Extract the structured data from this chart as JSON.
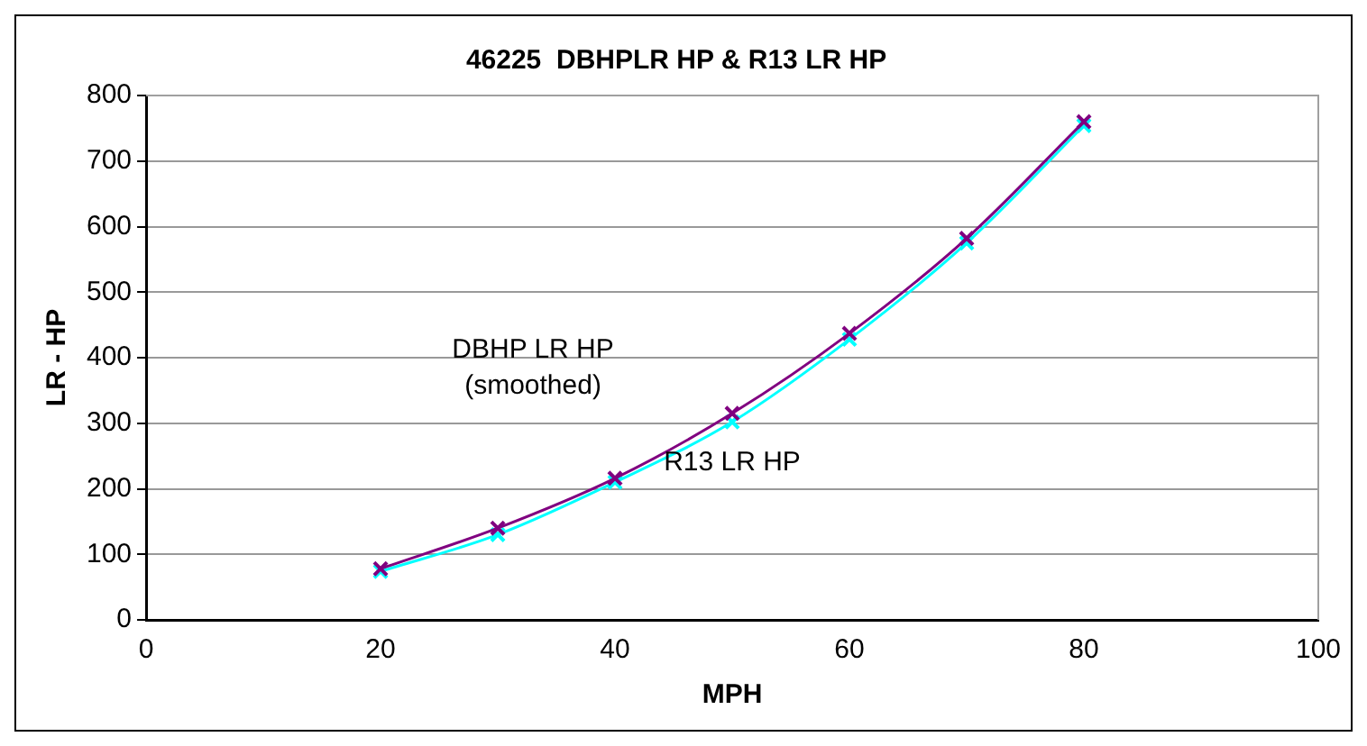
{
  "chart_data": {
    "type": "line",
    "title": "46225  DBHPLR HP & R13 LR HP",
    "xlabel": "MPH",
    "ylabel": "LR - HP",
    "x": [
      20,
      30,
      40,
      50,
      60,
      70,
      80
    ],
    "series": [
      {
        "name": "DBHP LR HP (smoothed)",
        "color": "#800080",
        "marker": "cross",
        "values": [
          78,
          140,
          216,
          315,
          437,
          582,
          760
        ]
      },
      {
        "name": "R13 LR HP",
        "color": "#00ffff",
        "marker": "cross",
        "values": [
          74,
          130,
          210,
          302,
          428,
          575,
          754
        ]
      }
    ],
    "xlim": [
      0,
      100
    ],
    "xticks": [
      0,
      20,
      40,
      60,
      80,
      100
    ],
    "ylim": [
      0,
      800
    ],
    "yticks": [
      0,
      100,
      200,
      300,
      400,
      500,
      600,
      700,
      800
    ],
    "grid": "y",
    "legend": false,
    "line_style": "solid"
  }
}
